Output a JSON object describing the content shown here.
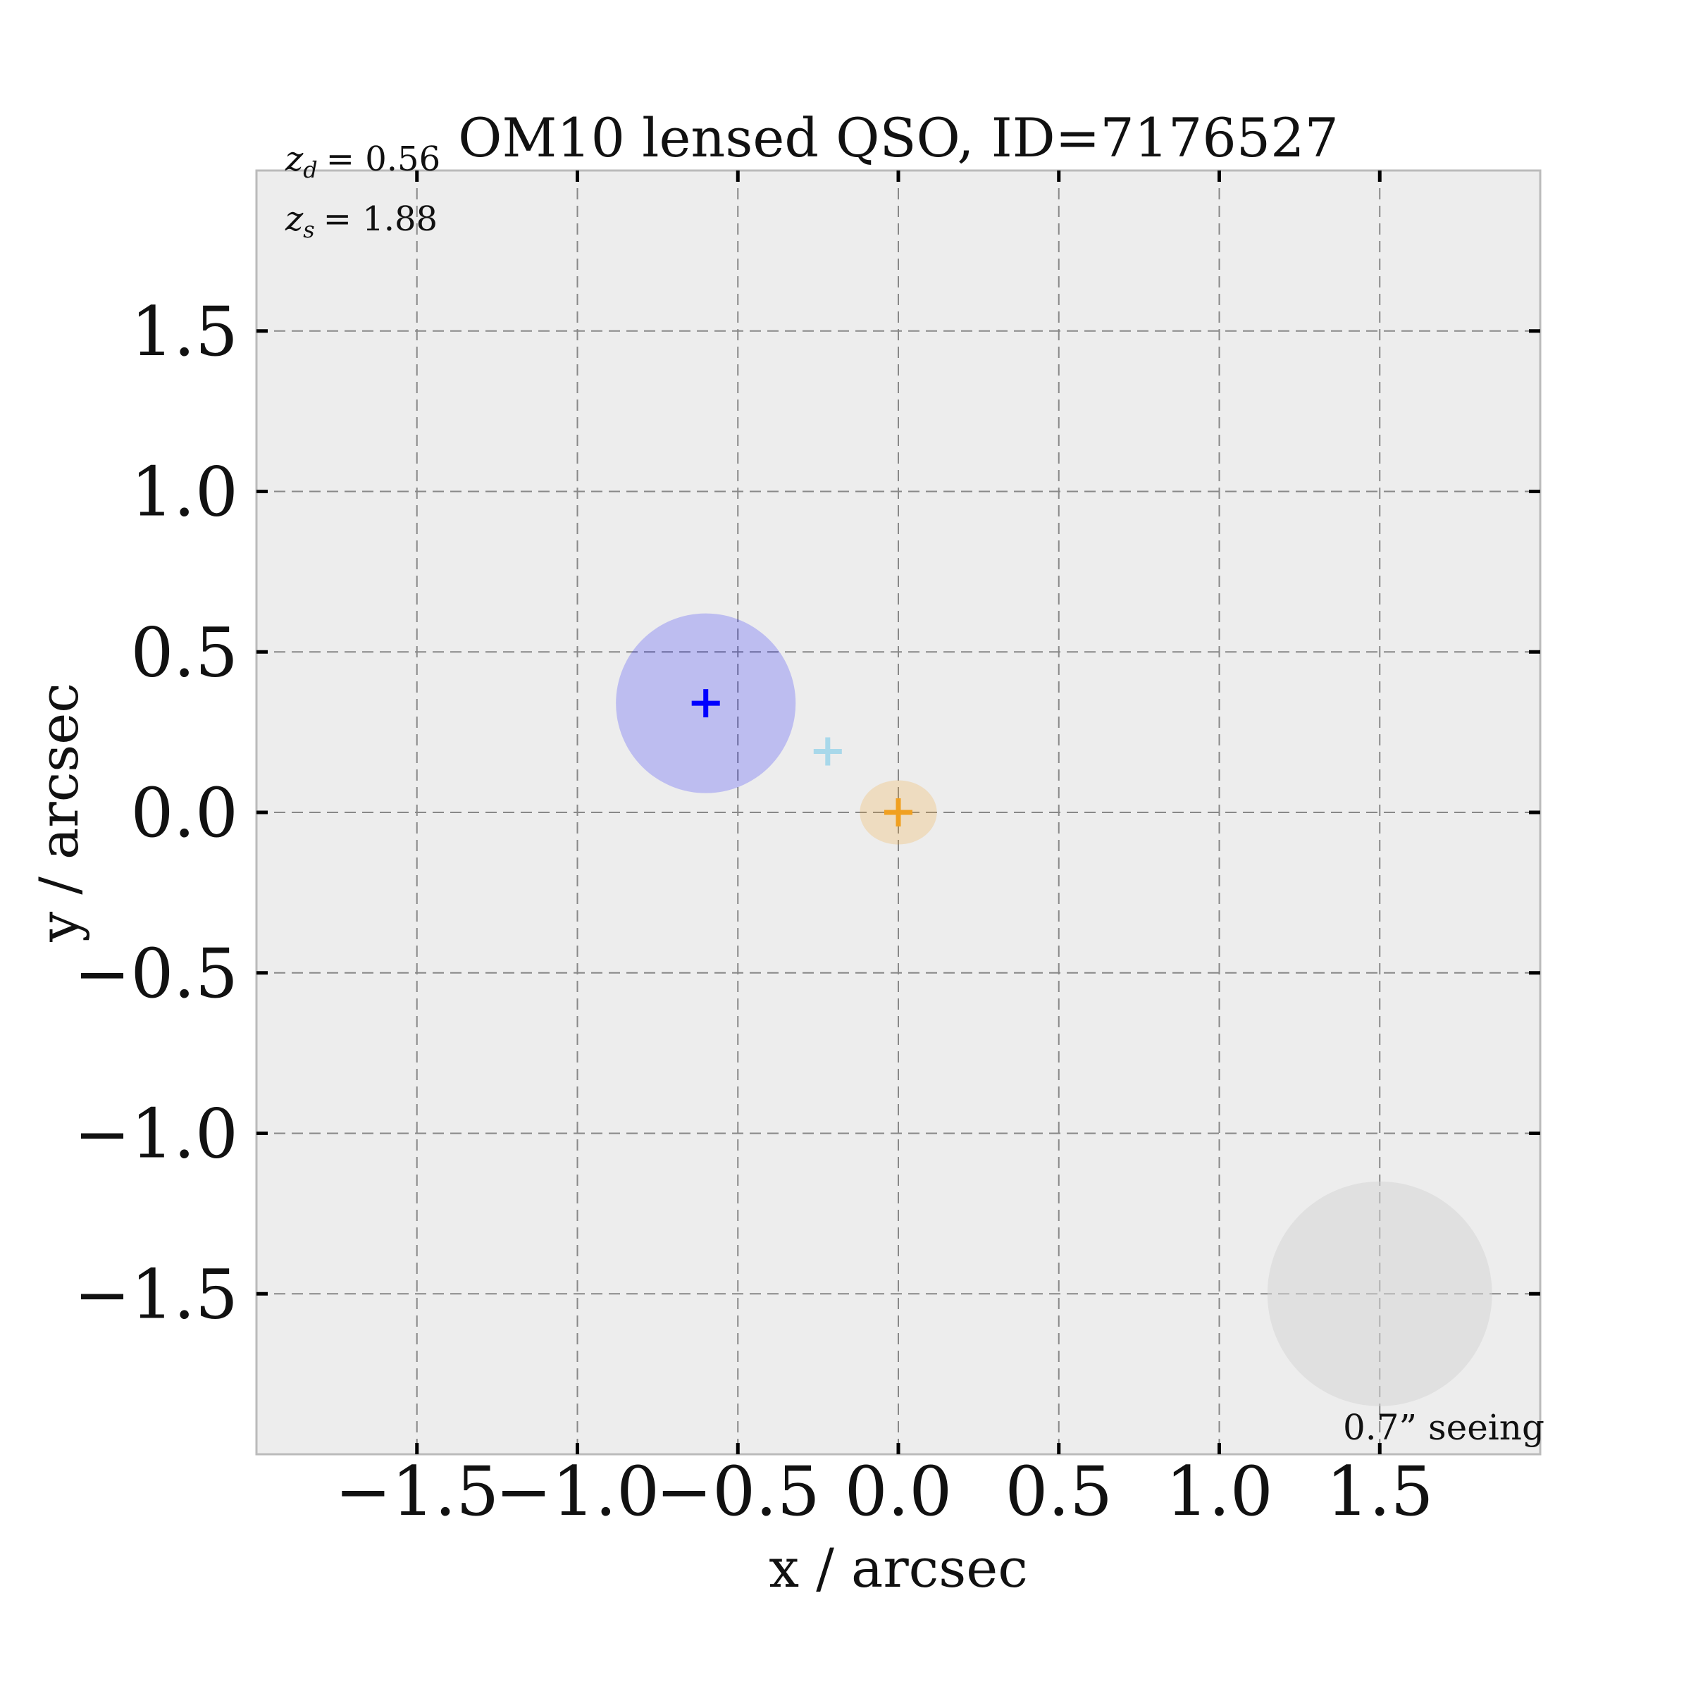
{
  "chart_data": {
    "type": "scatter",
    "title": "OM10 lensed QSO, ID=7176527",
    "xlabel": "x / arcsec",
    "ylabel": "y / arcsec",
    "xlim": [
      -2.0,
      2.0
    ],
    "ylim": [
      -2.0,
      2.0
    ],
    "xticks": [
      -1.5,
      -1.0,
      -0.5,
      0.0,
      0.5,
      1.0,
      1.5
    ],
    "yticks": [
      -1.5,
      -1.0,
      -0.5,
      0.0,
      0.5,
      1.0,
      1.5
    ],
    "xtick_labels": [
      "−1.5",
      "−1.0",
      "−0.5",
      "0.0",
      "0.5",
      "1.0",
      "1.5"
    ],
    "ytick_labels": [
      "−1.5",
      "−1.0",
      "−0.5",
      "0.0",
      "0.5",
      "1.0",
      "1.5"
    ],
    "grid": true,
    "annotations": {
      "z_d": "= 0.56",
      "z_s": "= 1.88",
      "seeing": "0.7” seeing"
    },
    "lens": {
      "x": 0.0,
      "y": 0.0,
      "rx": 0.12,
      "ry": 0.1,
      "color": "#f0a020"
    },
    "images": [
      {
        "x": -0.6,
        "y": 0.34,
        "radius": 0.28,
        "color": "#0000ff"
      }
    ],
    "source": {
      "x": -0.22,
      "y": 0.19,
      "color": "#a8d8ea"
    },
    "seeing_disk": {
      "x": 1.5,
      "y": -1.5,
      "diameter": 0.7,
      "color": "#d6d6d6"
    },
    "colors": {
      "plot_background": "#ededed",
      "grid": "#888888",
      "spine": "#bbbbbb"
    }
  }
}
